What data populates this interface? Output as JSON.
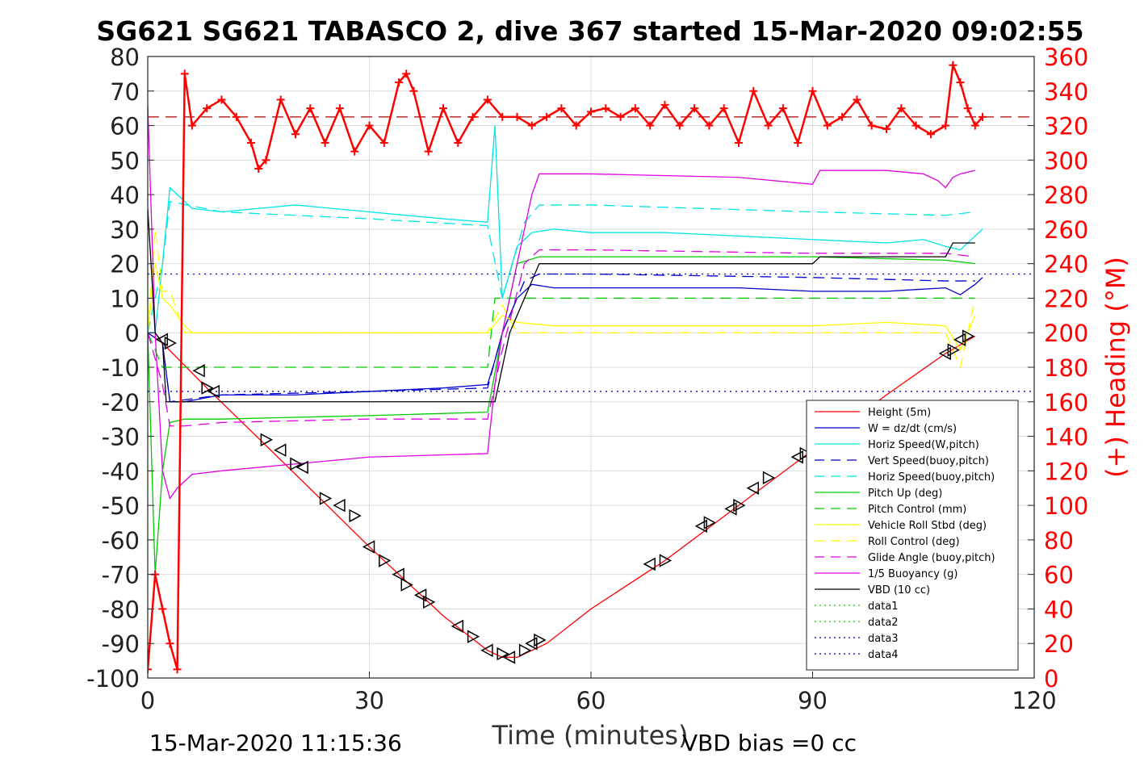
{
  "chart_data": {
    "type": "line",
    "title": "SG621 SG621 TABASCO 2, dive 367 started 15-Mar-2020 09:02:55",
    "xlabel": "Time (minutes)",
    "ylabel_right": "(+) Heading (°M)",
    "footer_left": "15-Mar-2020 11:15:36",
    "footer_right": "VBD bias =0 cc",
    "xlim": [
      0,
      120
    ],
    "ylim": [
      -100,
      80
    ],
    "ylim_right": [
      0,
      360
    ],
    "x_ticks": [
      0,
      30,
      60,
      90,
      120
    ],
    "y_ticks": [
      80,
      70,
      60,
      50,
      40,
      30,
      20,
      10,
      0,
      -10,
      -20,
      -30,
      -40,
      -50,
      -60,
      -70,
      -80,
      -90,
      -100
    ],
    "y_ticks_right": [
      360,
      340,
      320,
      300,
      280,
      260,
      240,
      220,
      200,
      180,
      160,
      140,
      120,
      100,
      80,
      60,
      40,
      20,
      0
    ],
    "grid": true,
    "legend_position": "lower-right",
    "colors": {
      "red": "#ff0000",
      "blue": "#0000cc",
      "cyan": "#00e5e5",
      "green": "#00cc00",
      "yellow": "#ffff00",
      "magenta": "#e000e0",
      "black": "#000000",
      "darkred": "#aa0000"
    },
    "series": [
      {
        "name": "Height (5m)",
        "color": "#ff0000",
        "style": "solid",
        "x": [
          0,
          2,
          8,
          20,
          30,
          40,
          46,
          48,
          50,
          54,
          60,
          70,
          80,
          90,
          100,
          108,
          112
        ],
        "y": [
          0,
          -3,
          -16,
          -41,
          -62,
          -82,
          -92,
          -94,
          -94,
          -90,
          -80,
          -66,
          -50,
          -34,
          -18,
          -6,
          -1
        ]
      },
      {
        "name": "W = dz/dt (cm/s)",
        "color": "#0000cc",
        "style": "solid",
        "x": [
          0,
          1,
          2,
          3,
          5,
          10,
          20,
          30,
          40,
          46,
          47,
          48,
          50,
          52,
          55,
          60,
          70,
          80,
          90,
          100,
          108,
          110,
          112,
          113
        ],
        "y": [
          0,
          0,
          -3,
          -20,
          -20,
          -18,
          -18,
          -17,
          -16,
          -15,
          -8,
          0,
          10,
          14,
          13,
          13,
          13,
          13,
          12,
          12,
          13,
          11,
          14,
          16
        ]
      },
      {
        "name": "Horiz Speed(W,pitch)",
        "color": "#00e5e5",
        "style": "solid",
        "x": [
          0,
          1,
          2,
          3,
          4,
          6,
          10,
          20,
          30,
          40,
          46,
          47,
          48,
          50,
          52,
          55,
          60,
          70,
          80,
          90,
          100,
          105,
          108,
          110,
          112,
          113
        ],
        "y": [
          0,
          0,
          20,
          42,
          40,
          36,
          35,
          37,
          35,
          33,
          32,
          60,
          10,
          25,
          29,
          30,
          29,
          29,
          28,
          27,
          26,
          27,
          25,
          24,
          28,
          30
        ]
      },
      {
        "name": "Vert Speed(buoy,pitch)",
        "color": "#0000cc",
        "style": "dash",
        "x": [
          0,
          2,
          3,
          10,
          30,
          46,
          48,
          51,
          53,
          60,
          90,
          108,
          112
        ],
        "y": [
          0,
          -3,
          -20,
          -18,
          -17,
          -16,
          0,
          15,
          17,
          17,
          16,
          15,
          15
        ]
      },
      {
        "name": "Horiz Speed(buoy,pitch)",
        "color": "#00e5e5",
        "style": "dash",
        "x": [
          0,
          2,
          3,
          10,
          30,
          46,
          48,
          51,
          53,
          60,
          90,
          108,
          112
        ],
        "y": [
          0,
          20,
          38,
          35,
          33,
          31,
          10,
          32,
          37,
          37,
          35,
          34,
          35
        ]
      },
      {
        "name": "Pitch Up (deg)",
        "color": "#00cc00",
        "style": "solid",
        "x": [
          0,
          1,
          2,
          3,
          5,
          10,
          30,
          46,
          48,
          50,
          53,
          60,
          90,
          108,
          112
        ],
        "y": [
          0,
          -70,
          -40,
          -26,
          -25,
          -25,
          -24,
          -23,
          0,
          20,
          22,
          22,
          22,
          21,
          20
        ]
      },
      {
        "name": "Pitch Control (mm)",
        "color": "#00cc00",
        "style": "dash",
        "x": [
          0,
          2,
          3,
          46,
          47,
          50,
          112
        ],
        "y": [
          0,
          -10,
          -10,
          -10,
          10,
          10,
          10
        ]
      },
      {
        "name": "Vehicle Roll Stbd (deg)",
        "color": "#ffff00",
        "style": "solid",
        "x": [
          0,
          1,
          2,
          3,
          5,
          6,
          20,
          30,
          40,
          46,
          48,
          50,
          55,
          60,
          80,
          90,
          100,
          108,
          110,
          112
        ],
        "y": [
          0,
          20,
          10,
          8,
          2,
          0,
          0,
          0,
          0,
          0,
          5,
          3,
          2,
          2,
          2,
          2,
          3,
          2,
          -5,
          5
        ]
      },
      {
        "name": "Roll Control (deg)",
        "color": "#ffff00",
        "style": "dash",
        "x": [
          0,
          1,
          2,
          3,
          5,
          6,
          20,
          30,
          40,
          46,
          48,
          50,
          55,
          60,
          80,
          90,
          100,
          108,
          110,
          112
        ],
        "y": [
          0,
          30,
          12,
          12,
          0,
          0,
          0,
          0,
          0,
          0,
          8,
          0,
          0,
          0,
          0,
          0,
          0,
          0,
          -10,
          10
        ]
      },
      {
        "name": "Glide Angle (buoy,pitch)",
        "color": "#e000e0",
        "style": "dash",
        "x": [
          0,
          2,
          3,
          5,
          10,
          30,
          46,
          48,
          51,
          53,
          60,
          90,
          108,
          112
        ],
        "y": [
          0,
          -15,
          -27,
          -27,
          -26,
          -25,
          -25,
          -5,
          20,
          24,
          24,
          23,
          23,
          22
        ]
      },
      {
        "name": "1/5 Buoyancy (g)",
        "color": "#e000e0",
        "style": "solid",
        "x": [
          0,
          1,
          2,
          3,
          4,
          6,
          10,
          20,
          30,
          46,
          47,
          48,
          50,
          52,
          53,
          60,
          80,
          90,
          91,
          100,
          105,
          107,
          108,
          109,
          110,
          112
        ],
        "y": [
          66,
          0,
          -40,
          -48,
          -45,
          -41,
          -40,
          -38,
          -36,
          -35,
          -15,
          0,
          20,
          40,
          46,
          46,
          45,
          43,
          47,
          47,
          46,
          44,
          42,
          45,
          46,
          47
        ]
      },
      {
        "name": "VBD (10 cc)",
        "color": "#000000",
        "style": "solid",
        "x": [
          0,
          1,
          2,
          2.5,
          46,
          47,
          49,
          53,
          60,
          90,
          91,
          108,
          109,
          112
        ],
        "y": [
          36,
          0,
          -3,
          -20,
          -20,
          -20,
          0,
          20,
          20,
          20,
          22,
          22,
          26,
          26
        ]
      },
      {
        "name": "data1",
        "color": "#00cc00",
        "style": "dot",
        "x": [],
        "y": []
      },
      {
        "name": "data2",
        "color": "#00cc00",
        "style": "dot",
        "x": [],
        "y": []
      },
      {
        "name": "data3",
        "color": "#0000cc",
        "style": "dot",
        "x": [
          0,
          120
        ],
        "y": [
          17,
          17
        ]
      },
      {
        "name": "data4",
        "color": "#0000cc",
        "style": "dot",
        "x": [
          0,
          120
        ],
        "y": [
          -17,
          -17
        ]
      }
    ],
    "heading": {
      "color": "#ff0000",
      "mean": 325,
      "mean_color": "#aa0000",
      "x": [
        0,
        1,
        2,
        3,
        4,
        5,
        6,
        8,
        10,
        12,
        14,
        15,
        16,
        18,
        20,
        22,
        24,
        26,
        28,
        30,
        32,
        34,
        35,
        36,
        38,
        40,
        42,
        44,
        46,
        48,
        50,
        52,
        54,
        56,
        58,
        60,
        62,
        64,
        66,
        68,
        70,
        72,
        74,
        76,
        78,
        80,
        82,
        84,
        86,
        88,
        90,
        92,
        94,
        96,
        98,
        100,
        102,
        104,
        106,
        108,
        109,
        110,
        111,
        112,
        113
      ],
      "y": [
        5,
        60,
        40,
        20,
        5,
        350,
        320,
        330,
        335,
        325,
        310,
        295,
        300,
        335,
        315,
        330,
        310,
        330,
        305,
        320,
        310,
        345,
        350,
        340,
        305,
        330,
        310,
        325,
        335,
        325,
        325,
        320,
        325,
        330,
        320,
        328,
        330,
        325,
        330,
        320,
        332,
        320,
        330,
        320,
        330,
        310,
        340,
        320,
        330,
        310,
        340,
        320,
        325,
        335,
        320,
        318,
        330,
        320,
        315,
        320,
        355,
        345,
        330,
        320,
        325
      ]
    },
    "markers": {
      "type": "triangle",
      "color": "#000000",
      "x": [
        2,
        3,
        7,
        8,
        9,
        16,
        18,
        20,
        21,
        24,
        26,
        28,
        30,
        32,
        34,
        35,
        37,
        38,
        42,
        44,
        46,
        48,
        49,
        51,
        52,
        53,
        68,
        70,
        75,
        76,
        79,
        80,
        82,
        84,
        88,
        89,
        108,
        109,
        110,
        111
      ],
      "y": [
        -2,
        -3,
        -11,
        -16,
        -17,
        -31,
        -34,
        -38,
        -39,
        -48,
        -50,
        -53,
        -62,
        -66,
        -70,
        -73,
        -76,
        -78,
        -85,
        -88,
        -92,
        -93,
        -94,
        -92,
        -90,
        -89,
        -67,
        -66,
        -56,
        -55,
        -51,
        -50,
        -45,
        -42,
        -36,
        -35,
        -6,
        -5,
        -2,
        -1
      ]
    }
  }
}
